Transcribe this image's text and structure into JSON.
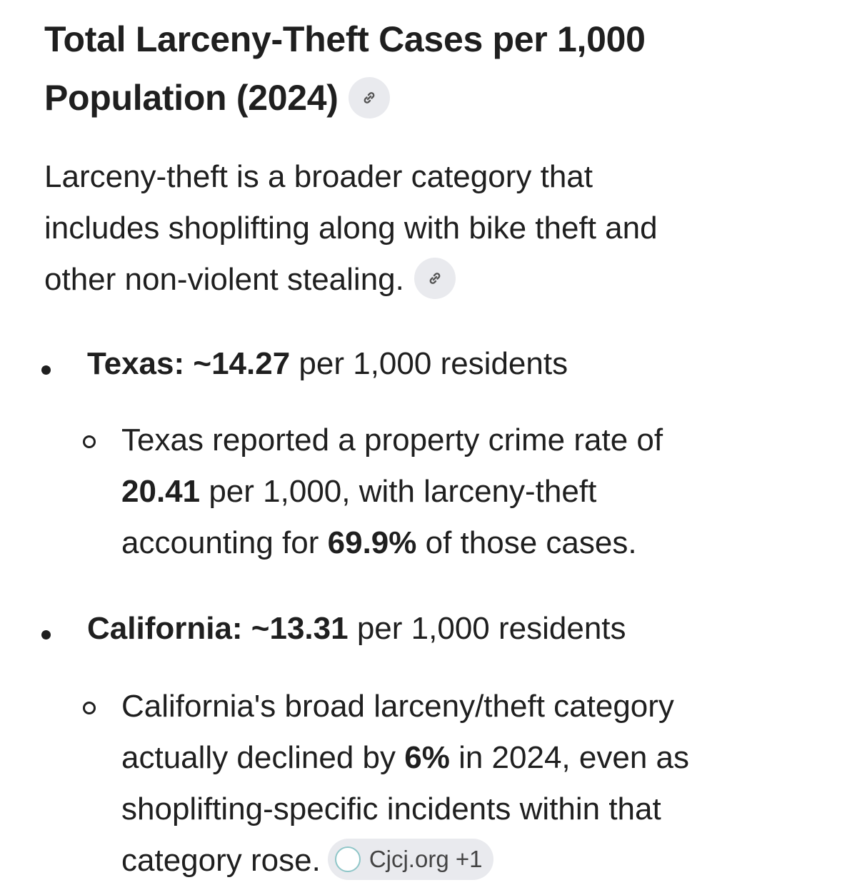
{
  "title": {
    "line1": "Total Larceny-Theft Cases per 1,000",
    "line2": "Population (2024)",
    "link_icon": "link-icon"
  },
  "intro": {
    "line1": "Larceny-theft is a broader category that",
    "line2": "includes shoplifting along with bike theft and",
    "line3": "other non-violent stealing.",
    "link_icon": "link-icon"
  },
  "bullets": [
    {
      "label": "Texas: ~14.27",
      "rest": " per 1,000 residents",
      "sub": {
        "l1": "Texas reported a property crime rate of",
        "l2_bold": "20.41",
        "l2": " per 1,000, with larceny-theft",
        "l3a": "accounting for ",
        "l3_bold": "69.9%",
        "l3b": " of those cases."
      }
    },
    {
      "label": "California: ~13.31",
      "rest": " per 1,000 residents",
      "sub": {
        "l1": "California's broad larceny/theft category",
        "l2a": "actually declined by ",
        "l2_bold": "6%",
        "l2b": " in 2024, even as",
        "l3": "shoplifting-specific incidents within that",
        "l4": "category rose.",
        "citation": {
          "logo": "CJCJ",
          "label": "Cjcj.org +1"
        }
      }
    }
  ]
}
